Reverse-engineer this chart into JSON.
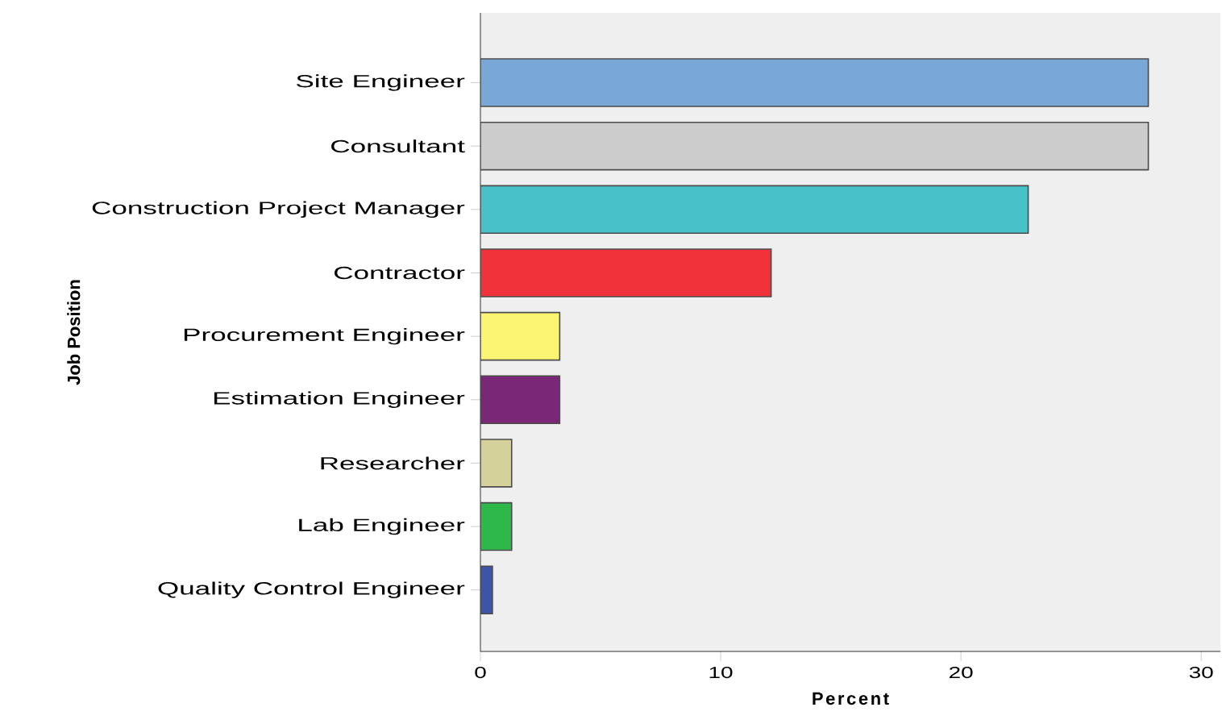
{
  "chart_data": {
    "type": "bar",
    "orientation": "horizontal",
    "xlabel": "Percent",
    "ylabel": "Job Position",
    "categories": [
      "Site Engineer",
      "Consultant",
      "Construction Project Manager",
      "Contractor",
      "Procurement Engineer",
      "Estimation Engineer",
      "Researcher",
      "Lab Engineer",
      "Quality Control Engineer"
    ],
    "values": [
      27.8,
      27.8,
      22.8,
      12.1,
      3.3,
      3.3,
      1.3,
      1.3,
      0.5
    ],
    "colors": [
      "#7aa8d6",
      "#cccccc",
      "#48c2c8",
      "#f0323a",
      "#fbf573",
      "#7b2777",
      "#d5d19a",
      "#2fb84a",
      "#3c55a8"
    ],
    "xlim": [
      0,
      30.8
    ],
    "xticks": [
      0,
      10,
      20,
      30
    ]
  }
}
